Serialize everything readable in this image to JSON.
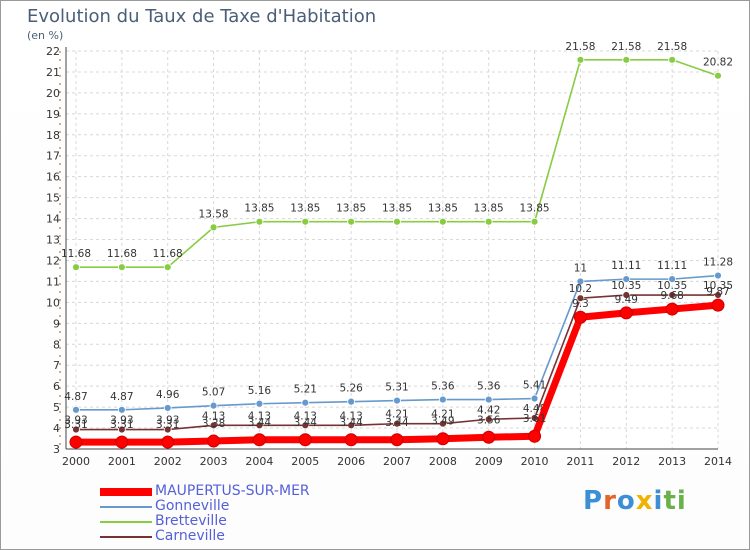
{
  "header": {
    "title": "Evolution du Taux de Taxe d'Habitation",
    "unit": "(en %)"
  },
  "chart_data": {
    "type": "line",
    "title": "Evolution du Taux de Taxe d'Habitation",
    "ylabel": "(en %)",
    "xlabel": "",
    "ylim": [
      3,
      22
    ],
    "yticks": [
      3,
      4,
      5,
      6,
      7,
      8,
      9,
      10,
      11,
      12,
      13,
      14,
      15,
      16,
      17,
      18,
      19,
      20,
      21,
      22
    ],
    "x": [
      "2000",
      "2001",
      "2002",
      "2003",
      "2004",
      "2005",
      "2006",
      "2007",
      "2008",
      "2009",
      "2010",
      "2011",
      "2012",
      "2013",
      "2014"
    ],
    "grid": true,
    "legend_position": "bottom-left",
    "series": [
      {
        "name": "MAUPERTUS-SUR-MER",
        "color": "#ff0000",
        "values": [
          3.33,
          3.33,
          3.33,
          3.38,
          3.44,
          3.44,
          3.44,
          3.44,
          3.49,
          3.56,
          3.61,
          9.29,
          9.5,
          9.68,
          9.87
        ],
        "labels": [
          "",
          "",
          "",
          "",
          "",
          "",
          "",
          "",
          "",
          "",
          "",
          "",
          "",
          "",
          ""
        ]
      },
      {
        "name": "Gonneville",
        "color": "#6699cc",
        "values": [
          4.87,
          4.87,
          4.96,
          5.07,
          5.16,
          5.21,
          5.26,
          5.31,
          5.36,
          5.36,
          5.41,
          11,
          11.11,
          11.11,
          11.28
        ],
        "labels": [
          "4.87",
          "4.87",
          "4.96",
          "5.07",
          "5.16",
          "5.21",
          "5.26",
          "5.31",
          "5.36",
          "5.36",
          "5.41",
          "11",
          "11.11",
          "11.11",
          "11.28"
        ]
      },
      {
        "name": "Bretteville",
        "color": "#88cc44",
        "values": [
          11.68,
          11.68,
          11.68,
          13.58,
          13.85,
          13.85,
          13.85,
          13.85,
          13.85,
          13.85,
          13.85,
          21.58,
          21.58,
          21.58,
          20.82
        ],
        "labels": [
          "11.68",
          "11.68",
          "11.68",
          "13.58",
          "13.85",
          "13.85",
          "13.85",
          "13.85",
          "13.85",
          "13.85",
          "13.85",
          "21.58",
          "21.58",
          "21.58",
          "20.82"
        ]
      },
      {
        "name": "Carneville",
        "color": "#773333",
        "values": [
          3.93,
          3.93,
          3.93,
          4.13,
          4.13,
          4.13,
          4.13,
          4.21,
          4.21,
          4.42,
          4.48,
          10.2,
          10.35,
          10.35,
          10.35
        ],
        "labels": [
          "3.93",
          "3.93",
          "3.93",
          "4.13",
          "4.13",
          "4.13",
          "4.13",
          "4.21",
          "4.21",
          "4.42",
          "4.48",
          "10.2",
          "10.35",
          "10.35",
          "10.35"
        ]
      }
    ],
    "secondary_labels": {
      "series": "Carneville",
      "labels": [
        "3.31",
        "3.31",
        "3.31",
        "3.38",
        "3.44",
        "3.44",
        "3.44",
        "3.44",
        "3.49",
        "3.56",
        "3.61",
        "9.3",
        "9.49",
        "9.68",
        "9.87"
      ]
    }
  },
  "logo": {
    "text": "Proxiti",
    "colors": [
      "#3b8fd4",
      "#e0662a",
      "#3b8fd4",
      "#f0b400",
      "#3b8fd4",
      "#6ab04c",
      "#6ab04c"
    ]
  }
}
